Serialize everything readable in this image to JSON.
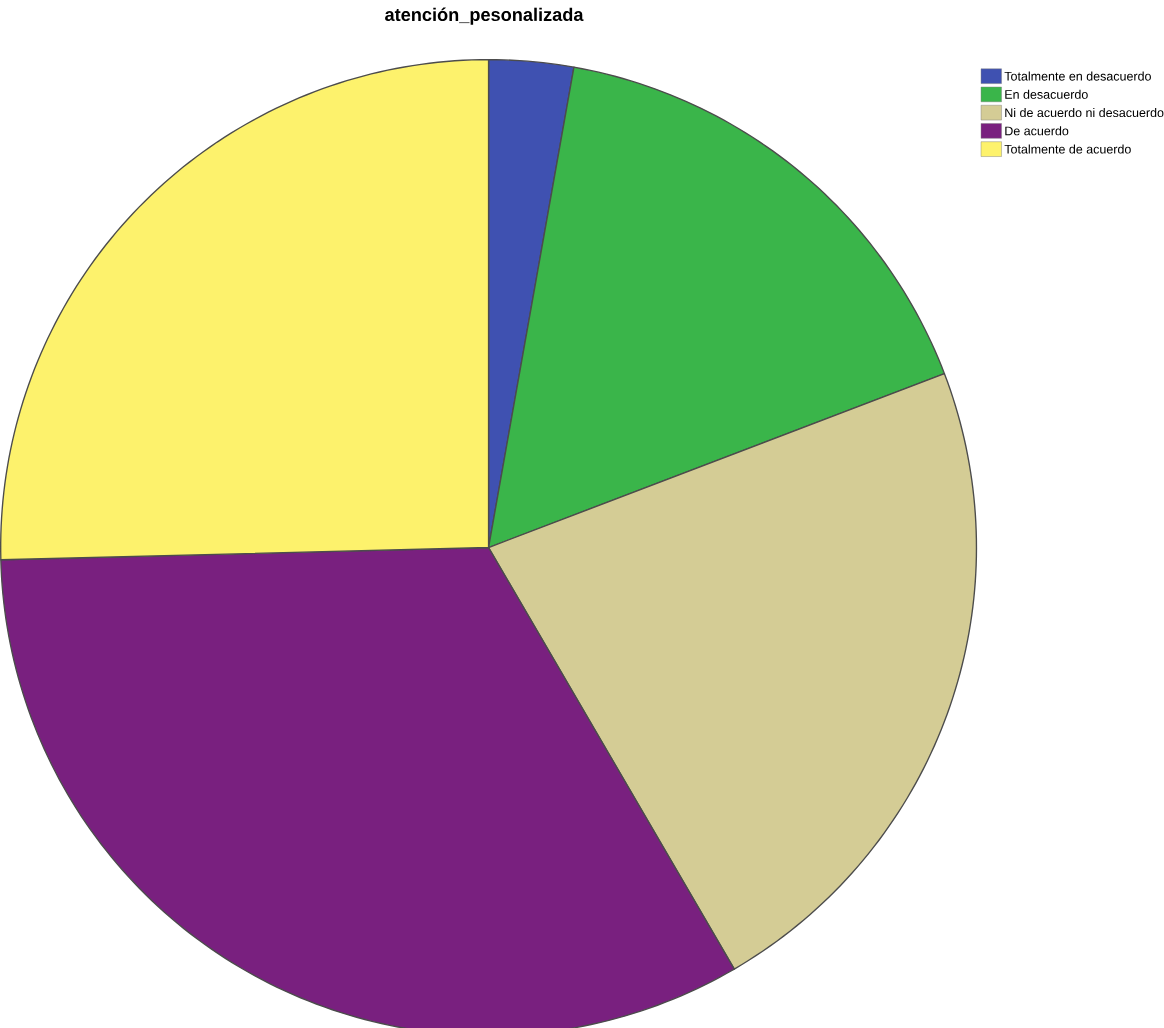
{
  "chart_data": {
    "type": "pie",
    "title": "atención_pesonalizada",
    "categories": [
      "Totalmente en desacuerdo",
      "En desacuerdo",
      "Ni de acuerdo ni desacuerdo",
      "De acuerdo",
      "Totalmente de acuerdo"
    ],
    "values": [
      2.8,
      16.4,
      22.4,
      33.0,
      25.4
    ],
    "colors": [
      "#3f51b1",
      "#3ab54a",
      "#d4cc95",
      "#79207f",
      "#fdf26c"
    ],
    "legend": "top right"
  }
}
